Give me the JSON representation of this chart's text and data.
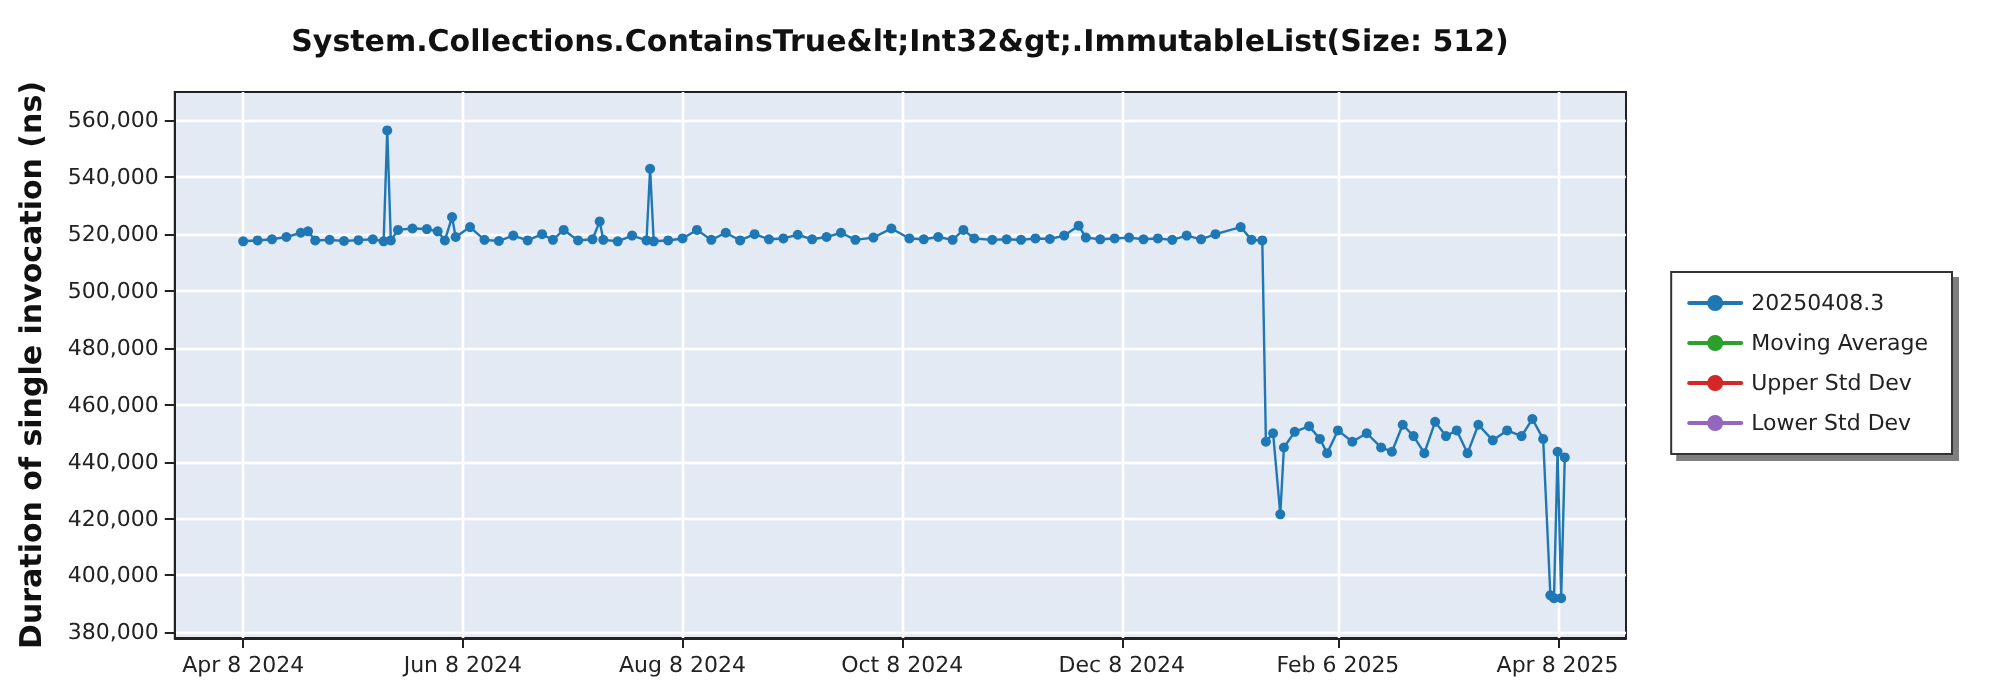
{
  "chart_data": {
    "type": "line",
    "title": "System.Collections.ContainsTrue&lt;Int32&gt;.ImmutableList(Size: 512)",
    "ylabel": "Duration of single invocation (ns)",
    "x": [
      "2024-04-08",
      "2024-04-12",
      "2024-04-16",
      "2024-04-20",
      "2024-04-24",
      "2024-04-26",
      "2024-04-28",
      "2024-05-02",
      "2024-05-06",
      "2024-05-10",
      "2024-05-14",
      "2024-05-17",
      "2024-05-18",
      "2024-05-19",
      "2024-05-21",
      "2024-05-25",
      "2024-05-29",
      "2024-06-01",
      "2024-06-03",
      "2024-06-05",
      "2024-06-06",
      "2024-06-10",
      "2024-06-14",
      "2024-06-18",
      "2024-06-22",
      "2024-06-26",
      "2024-06-30",
      "2024-07-03",
      "2024-07-06",
      "2024-07-10",
      "2024-07-14",
      "2024-07-16",
      "2024-07-17",
      "2024-07-21",
      "2024-07-25",
      "2024-07-29",
      "2024-07-30",
      "2024-07-31",
      "2024-08-04",
      "2024-08-08",
      "2024-08-12",
      "2024-08-16",
      "2024-08-20",
      "2024-08-24",
      "2024-08-28",
      "2024-09-01",
      "2024-09-05",
      "2024-09-09",
      "2024-09-13",
      "2024-09-17",
      "2024-09-21",
      "2024-09-25",
      "2024-09-30",
      "2024-10-05",
      "2024-10-10",
      "2024-10-14",
      "2024-10-18",
      "2024-10-22",
      "2024-10-25",
      "2024-10-28",
      "2024-11-02",
      "2024-11-06",
      "2024-11-10",
      "2024-11-14",
      "2024-11-18",
      "2024-11-22",
      "2024-11-26",
      "2024-11-28",
      "2024-12-02",
      "2024-12-06",
      "2024-12-10",
      "2024-12-14",
      "2024-12-18",
      "2024-12-22",
      "2024-12-26",
      "2024-12-30",
      "2025-01-03",
      "2025-01-10",
      "2025-01-13",
      "2025-01-16",
      "2025-01-17",
      "2025-01-19",
      "2025-01-21",
      "2025-01-22",
      "2025-01-25",
      "2025-01-29",
      "2025-02-01",
      "2025-02-03",
      "2025-02-06",
      "2025-02-10",
      "2025-02-14",
      "2025-02-18",
      "2025-02-21",
      "2025-02-24",
      "2025-02-27",
      "2025-03-02",
      "2025-03-05",
      "2025-03-08",
      "2025-03-11",
      "2025-03-14",
      "2025-03-17",
      "2025-03-21",
      "2025-03-25",
      "2025-03-29",
      "2025-04-01",
      "2025-04-04",
      "2025-04-06",
      "2025-04-07",
      "2025-04-08",
      "2025-04-09",
      "2025-04-10"
    ],
    "series": [
      {
        "name": "20250408.3",
        "color": "#1f77b4",
        "values": [
          517500,
          517800,
          518200,
          519000,
          520500,
          521000,
          517800,
          518000,
          517600,
          517900,
          518200,
          517500,
          556500,
          517800,
          521500,
          522000,
          521800,
          521000,
          517800,
          526000,
          519000,
          522500,
          518000,
          517600,
          519500,
          517800,
          520000,
          518000,
          521500,
          517800,
          518200,
          524500,
          518000,
          517500,
          519500,
          517800,
          543000,
          517500,
          517800,
          518500,
          521500,
          518000,
          520500,
          517800,
          520000,
          518200,
          518500,
          519800,
          518200,
          519000,
          520500,
          518000,
          518800,
          522000,
          518500,
          518200,
          519000,
          518000,
          521500,
          518500,
          518000,
          518200,
          518000,
          518500,
          518300,
          519500,
          523000,
          518800,
          518200,
          518500,
          518800,
          518200,
          518500,
          518000,
          519500,
          518200,
          520000,
          522500,
          518000,
          517800,
          447000,
          450000,
          421500,
          445000,
          450500,
          452500,
          448000,
          443000,
          451000,
          447000,
          450000,
          445000,
          443500,
          453000,
          449000,
          443000,
          454000,
          449000,
          451000,
          443000,
          453000,
          447500,
          451000,
          449000,
          455000,
          448000,
          393000,
          392000,
          443500,
          392000,
          441500
        ]
      },
      {
        "name": "Moving Average",
        "color": "#2ca02c",
        "values": [
          null,
          null,
          null,
          null,
          null,
          null,
          null,
          null,
          null,
          null,
          null,
          null,
          null,
          null,
          null,
          null,
          null,
          null,
          null,
          null,
          null,
          null,
          null,
          null,
          null,
          null,
          null,
          null,
          null,
          null,
          null,
          null,
          null,
          null,
          null,
          null,
          null,
          null,
          null,
          null,
          null,
          null,
          null,
          null,
          null,
          null,
          null,
          null,
          null,
          null,
          null,
          null,
          null,
          null,
          null,
          null,
          null,
          null,
          null,
          null,
          null,
          null,
          null,
          null,
          null,
          null,
          null,
          null,
          null,
          null,
          null,
          null,
          null,
          null,
          null,
          null,
          null,
          null,
          null,
          null,
          null,
          null,
          null,
          null,
          null,
          null,
          null,
          null,
          null,
          null,
          null,
          null,
          null,
          null,
          null,
          null,
          null,
          null,
          null,
          null,
          null,
          null,
          null,
          null,
          null,
          null,
          null,
          null,
          null,
          null,
          null
        ]
      },
      {
        "name": "Upper Std Dev",
        "color": "#d62728",
        "values": [
          null,
          null,
          null,
          null,
          null,
          null,
          null,
          null,
          null,
          null,
          null,
          null,
          null,
          null,
          null,
          null,
          null,
          null,
          null,
          null,
          null,
          null,
          null,
          null,
          null,
          null,
          null,
          null,
          null,
          null,
          null,
          null,
          null,
          null,
          null,
          null,
          null,
          null,
          null,
          null,
          null,
          null,
          null,
          null,
          null,
          null,
          null,
          null,
          null,
          null,
          null,
          null,
          null,
          null,
          null,
          null,
          null,
          null,
          null,
          null,
          null,
          null,
          null,
          null,
          null,
          null,
          null,
          null,
          null,
          null,
          null,
          null,
          null,
          null,
          null,
          null,
          null,
          null,
          null,
          null,
          null,
          null,
          null,
          null,
          null,
          null,
          null,
          null,
          null,
          null,
          null,
          null,
          null,
          null,
          null,
          null,
          null,
          null,
          null,
          null,
          null,
          null,
          null,
          null,
          null,
          null,
          null,
          null,
          null,
          null,
          null
        ]
      },
      {
        "name": "Lower Std Dev",
        "color": "#9467bd",
        "values": [
          null,
          null,
          null,
          null,
          null,
          null,
          null,
          null,
          null,
          null,
          null,
          null,
          null,
          null,
          null,
          null,
          null,
          null,
          null,
          null,
          null,
          null,
          null,
          null,
          null,
          null,
          null,
          null,
          null,
          null,
          null,
          null,
          null,
          null,
          null,
          null,
          null,
          null,
          null,
          null,
          null,
          null,
          null,
          null,
          null,
          null,
          null,
          null,
          null,
          null,
          null,
          null,
          null,
          null,
          null,
          null,
          null,
          null,
          null,
          null,
          null,
          null,
          null,
          null,
          null,
          null,
          null,
          null,
          null,
          null,
          null,
          null,
          null,
          null,
          null,
          null,
          null,
          null,
          null,
          null,
          null,
          null,
          null,
          null,
          null,
          null,
          null,
          null,
          null,
          null,
          null,
          null,
          null,
          null,
          null,
          null,
          null,
          null,
          null,
          null,
          null,
          null,
          null,
          null,
          null,
          null,
          null,
          null,
          null,
          null,
          null
        ]
      }
    ],
    "xlim": [
      "2024-03-20",
      "2025-04-27"
    ],
    "xticks": [
      {
        "value": "2024-04-08",
        "label": "Apr 8 2024"
      },
      {
        "value": "2024-06-08",
        "label": "Jun 8 2024"
      },
      {
        "value": "2024-08-08",
        "label": "Aug 8 2024"
      },
      {
        "value": "2024-10-08",
        "label": "Oct 8 2024"
      },
      {
        "value": "2024-12-08",
        "label": "Dec 8 2024"
      },
      {
        "value": "2025-02-06",
        "label": "Feb 6 2025"
      },
      {
        "value": "2025-04-08",
        "label": "Apr 8 2025"
      }
    ],
    "ylim": [
      378000,
      570000
    ],
    "yticks": [
      {
        "value": 380000,
        "label": "380,000"
      },
      {
        "value": 400000,
        "label": "400,000"
      },
      {
        "value": 420000,
        "label": "420,000"
      },
      {
        "value": 440000,
        "label": "440,000"
      },
      {
        "value": 460000,
        "label": "460,000"
      },
      {
        "value": 480000,
        "label": "480,000"
      },
      {
        "value": 500000,
        "label": "500,000"
      },
      {
        "value": 520000,
        "label": "520,000"
      },
      {
        "value": 540000,
        "label": "540,000"
      },
      {
        "value": 560000,
        "label": "560,000"
      }
    ],
    "grid": true,
    "legend": "right",
    "marker": "circle",
    "line_style": "solid"
  }
}
